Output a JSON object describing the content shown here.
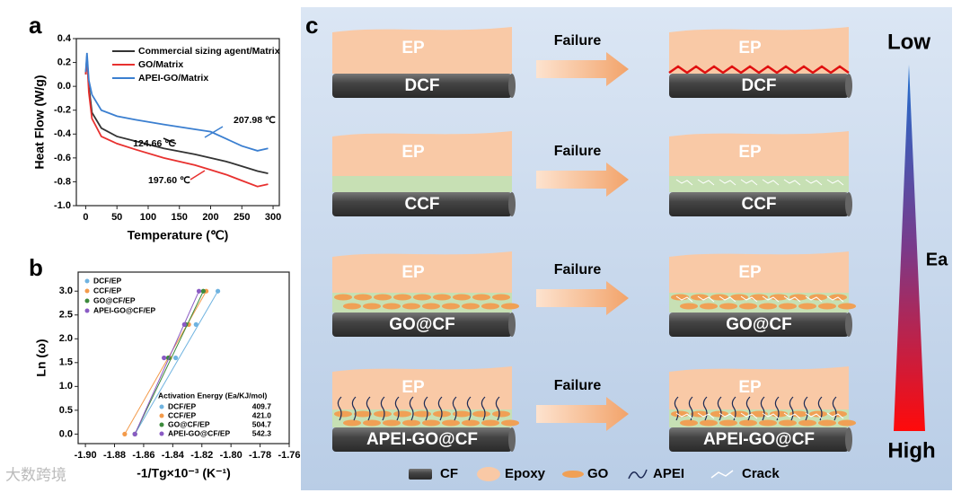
{
  "chart_data": [
    {
      "type": "line",
      "xlabel": "Temperature (℃)",
      "ylabel": "Heat Flow (W/g)",
      "x": [
        0,
        2,
        5,
        10,
        25,
        50,
        80,
        125,
        175,
        200,
        225,
        250,
        275,
        292
      ],
      "series": [
        {
          "name": "Commercial sizing agent/Matrix",
          "color": "#333333",
          "values": [
            0.1,
            0.25,
            0.0,
            -0.22,
            -0.35,
            -0.42,
            -0.46,
            -0.52,
            -0.57,
            -0.6,
            -0.63,
            -0.67,
            -0.71,
            -0.73
          ]
        },
        {
          "name": "GO/Matrix",
          "color": "#e8312f",
          "values": [
            0.1,
            0.23,
            -0.05,
            -0.27,
            -0.42,
            -0.48,
            -0.53,
            -0.6,
            -0.66,
            -0.7,
            -0.74,
            -0.79,
            -0.84,
            -0.82
          ]
        },
        {
          "name": "APEI-GO/Matrix",
          "color": "#3b7fd0",
          "values": [
            0.12,
            0.28,
            0.05,
            -0.07,
            -0.2,
            -0.25,
            -0.28,
            -0.32,
            -0.36,
            -0.38,
            -0.44,
            -0.5,
            -0.54,
            -0.52
          ]
        }
      ],
      "annotations": [
        "207.98 ℃",
        "124.66 ℃",
        "197.60 ℃"
      ],
      "xlim": [
        -15,
        310
      ],
      "xticks": [
        0,
        50,
        100,
        150,
        200,
        250,
        300
      ],
      "ylim": [
        -1.0,
        0.4
      ],
      "yticks": [
        {
          "value": -1.0,
          "label": "-1.0"
        },
        -0.8,
        -0.6,
        -0.4,
        -0.2,
        {
          "value": 0,
          "label": "0.0"
        },
        0.2,
        0.4
      ],
      "legend": "top-right"
    },
    {
      "type": "scatter",
      "xlabel": "-1/Tg×10⁻³ (K⁻¹)",
      "ylabel": "Ln (ω)",
      "series": [
        {
          "name": "DCF/EP",
          "color": "#6fb3e0",
          "x": [
            -1.866,
            -1.838,
            -1.824,
            -1.809
          ],
          "values": [
            0,
            1.6,
            2.3,
            3.0
          ]
        },
        {
          "name": "CCF/EP",
          "color": "#f39a4a",
          "x": [
            -1.873,
            -1.842,
            -1.829,
            -1.817
          ],
          "values": [
            0,
            1.6,
            2.3,
            3.0
          ]
        },
        {
          "name": "GO@CF/EP",
          "color": "#3c8a3c",
          "x": [
            -1.866,
            -1.843,
            -1.831,
            -1.819
          ],
          "values": [
            0,
            1.6,
            2.3,
            3.0
          ]
        },
        {
          "name": "APEI-GO@CF/EP",
          "color": "#8a5bc4",
          "x": [
            -1.866,
            -1.846,
            -1.832,
            -1.822
          ],
          "values": [
            0,
            1.6,
            2.3,
            3.0
          ]
        }
      ],
      "table": {
        "title": "Activation Energy (Ea/KJ/mol)",
        "rows": [
          [
            "DCF/EP",
            "409.7"
          ],
          [
            "CCF/EP",
            "421.0"
          ],
          [
            "GO@CF/EP",
            "504.7"
          ],
          [
            "APEI-GO@CF/EP",
            "542.3"
          ]
        ]
      },
      "xlim": [
        -1.905,
        -1.76
      ],
      "xticks": [
        {
          "value": -1.9,
          "label": "-1.90"
        },
        -1.88,
        -1.86,
        -1.84,
        -1.82,
        {
          "value": -1.8,
          "label": "-1.80"
        },
        -1.78,
        -1.76
      ],
      "ylim": [
        -0.2,
        3.4
      ],
      "yticks": [
        {
          "value": 0,
          "label": "0.0"
        },
        0.5,
        {
          "value": 1,
          "label": "1.0"
        },
        1.5,
        {
          "value": 2,
          "label": "2.0"
        },
        2.5,
        {
          "value": 3,
          "label": "3.0"
        }
      ],
      "legend": "top-left"
    }
  ],
  "panel_labels": [
    "a",
    "b",
    "c"
  ],
  "diagram": {
    "matrix": "EP",
    "arrow": "Failure",
    "fibers": [
      "DCF",
      "CCF",
      "GO@CF",
      "APEI-GO@CF"
    ],
    "legend": [
      "CF",
      "Epoxy",
      "GO",
      "APEI",
      "Crack"
    ],
    "scale": {
      "top": "Low",
      "middle": "Ea",
      "bottom": "High"
    }
  },
  "watermark": "大数跨境"
}
